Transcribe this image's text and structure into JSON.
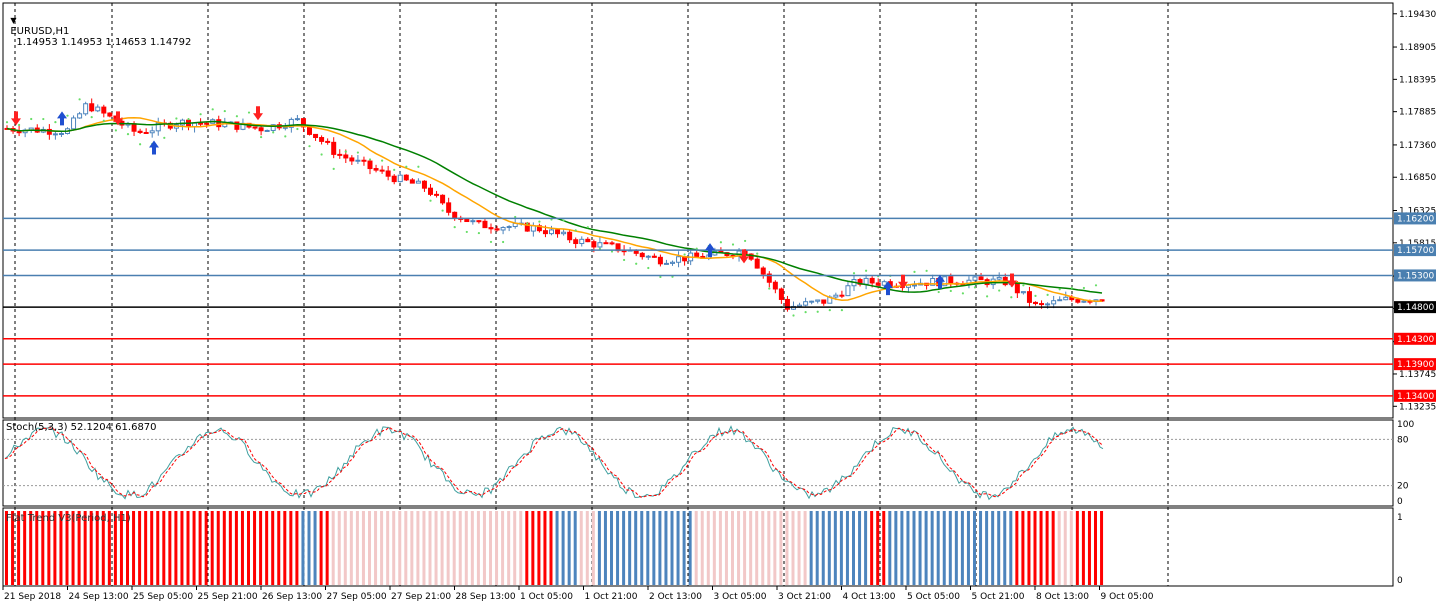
{
  "header": {
    "symbol": "EURUSD,H1",
    "ohlc": "1.14953 1.14953 1.14653 1.14792"
  },
  "price_axis": {
    "ticks": [
      "1.19430",
      "1.18905",
      "1.18395",
      "1.17885",
      "1.17360",
      "1.16850",
      "1.16325",
      "1.15815",
      "1.15290",
      "1.14780",
      "1.14255",
      "1.13745",
      "1.13235"
    ]
  },
  "time_axis": {
    "labels": [
      "21 Sep 2018",
      "24 Sep 13:00",
      "25 Sep 05:00",
      "25 Sep 21:00",
      "26 Sep 13:00",
      "27 Sep 05:00",
      "27 Sep 21:00",
      "28 Sep 13:00",
      "1 Oct 05:00",
      "1 Oct 21:00",
      "2 Oct 13:00",
      "3 Oct 05:00",
      "3 Oct 21:00",
      "4 Oct 13:00",
      "5 Oct 05:00",
      "5 Oct 21:00",
      "8 Oct 13:00",
      "9 Oct 05:00"
    ]
  },
  "levels": [
    {
      "label": "1.16200",
      "value": 1.162,
      "color": "#4a7fb0"
    },
    {
      "label": "1.15700",
      "value": 1.157,
      "color": "#4a7fb0"
    },
    {
      "label": "1.15300",
      "value": 1.153,
      "color": "#4a7fb0"
    },
    {
      "label": "1.14800",
      "value": 1.148,
      "color": "#000000"
    },
    {
      "label": "1.14300",
      "value": 1.143,
      "color": "#ff0000"
    },
    {
      "label": "1.13900",
      "value": 1.139,
      "color": "#ff0000"
    },
    {
      "label": "1.13400",
      "value": 1.134,
      "color": "#ff0000"
    }
  ],
  "stoch_panel": {
    "label": "Stoch(5,3,3) 52.1204 61.6870",
    "ticks": [
      "100",
      "80",
      "20",
      "0"
    ]
  },
  "flat_panel": {
    "label": "Flat Trend V3(Period, H1)",
    "ticks": [
      "1",
      "0"
    ]
  },
  "colors": {
    "bull": "#4d84bd",
    "bear": "#ff0000",
    "ma_fast": "#ffa500",
    "ma_slow": "#008000",
    "sar": "#66dd66",
    "stoch_main": "#40a0a0",
    "stoch_signal": "#ff0000",
    "arrow_up": "#1f4fd0",
    "arrow_down": "#ff2020"
  },
  "chart_data": {
    "type": "candlestick",
    "symbol": "EURUSD",
    "timeframe": "H1",
    "ylim": [
      1.1305,
      1.196
    ],
    "trend_points": [
      [
        0,
        1.1762
      ],
      [
        60,
        1.1758
      ],
      [
        80,
        1.18
      ],
      [
        130,
        1.1755
      ],
      [
        170,
        1.1772
      ],
      [
        210,
        1.177
      ],
      [
        255,
        1.1762
      ],
      [
        290,
        1.1775
      ],
      [
        330,
        1.1722
      ],
      [
        380,
        1.1688
      ],
      [
        420,
        1.1668
      ],
      [
        440,
        1.1632
      ],
      [
        470,
        1.161
      ],
      [
        530,
        1.1605
      ],
      [
        570,
        1.1585
      ],
      [
        620,
        1.157
      ],
      [
        650,
        1.1555
      ],
      [
        700,
        1.156
      ],
      [
        740,
        1.157
      ],
      [
        780,
        1.148
      ],
      [
        820,
        1.149
      ],
      [
        850,
        1.152
      ],
      [
        900,
        1.1518
      ],
      [
        950,
        1.1522
      ],
      [
        1000,
        1.152
      ],
      [
        1030,
        1.148
      ],
      [
        1060,
        1.1492
      ],
      [
        1108,
        1.1495
      ]
    ],
    "key_values": {
      "last_open": 1.14953,
      "last_high": 1.14953,
      "last_low": 1.14653,
      "last_close": 1.14792
    }
  }
}
